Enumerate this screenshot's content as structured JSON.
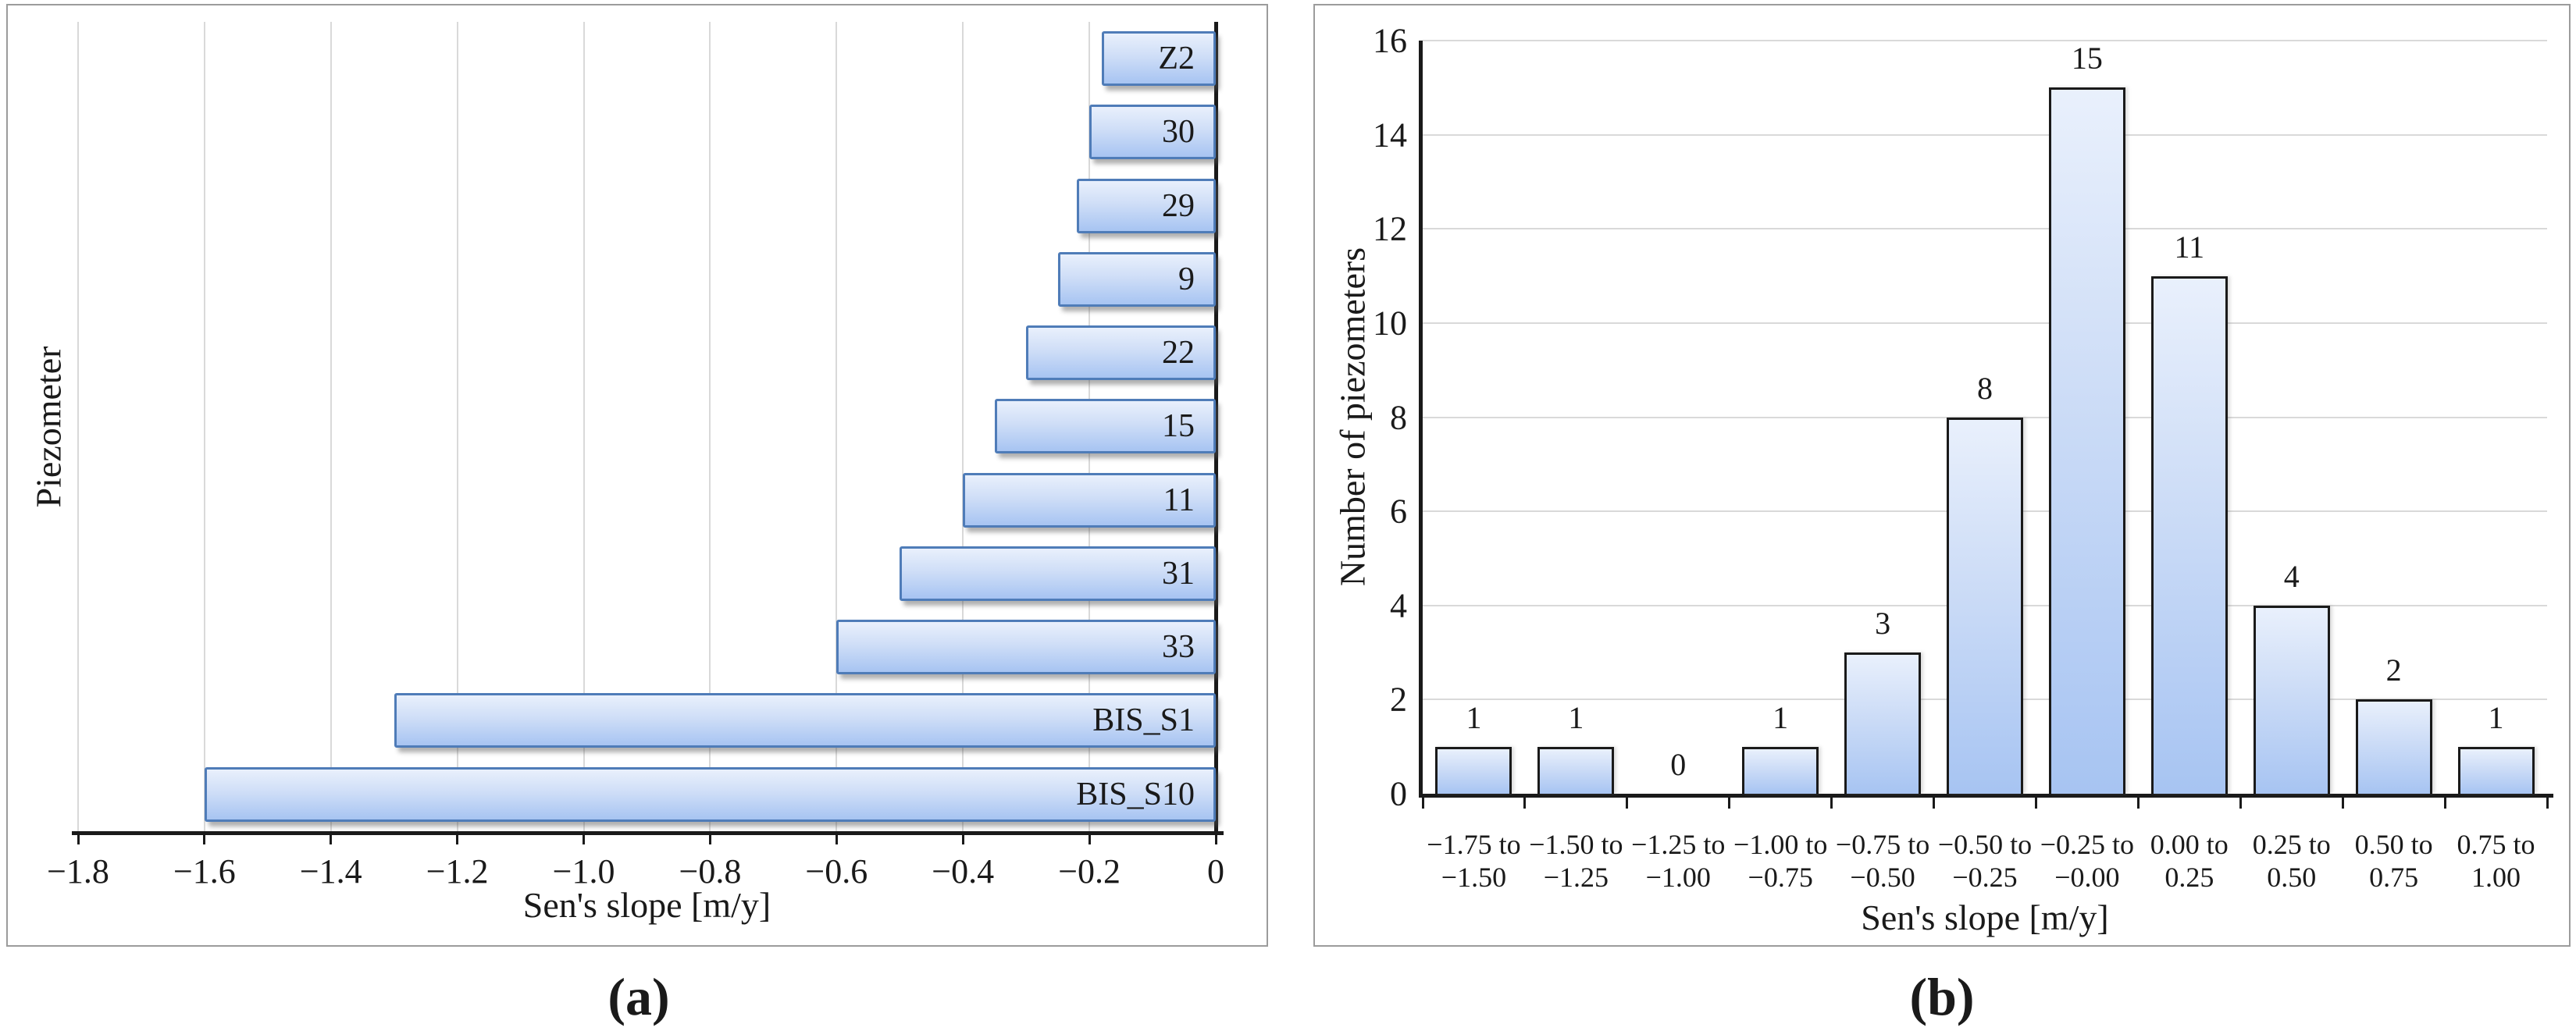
{
  "figure": {
    "caption_a": "(a)",
    "caption_b": "(b)"
  },
  "colors": {
    "bar_fill_top": "#e9f0fc",
    "bar_fill_mid": "#cfdef7",
    "bar_fill_bottom": "#a7c4f2",
    "bar_border_panel_a": "#4f7cb8",
    "bar_border_panel_b": "#1a1a1a",
    "gridline": "#d9d9d9",
    "axis": "#1a1a1a",
    "panel_border": "#9c9c9c",
    "text": "#1a1a1a"
  },
  "chart_data": [
    {
      "id": "a",
      "type": "bar",
      "orientation": "horizontal",
      "xlabel": "Sen's slope [m/y]",
      "ylabel": "Piezometer",
      "xlim": [
        -1.8,
        0
      ],
      "grid": "vertical",
      "legend": "none",
      "xticks": [
        {
          "value": -1.8,
          "label": "−1.8"
        },
        {
          "value": -1.6,
          "label": "−1.6"
        },
        {
          "value": -1.4,
          "label": "−1.4"
        },
        {
          "value": -1.2,
          "label": "−1.2"
        },
        {
          "value": -1.0,
          "label": "−1.0"
        },
        {
          "value": -0.8,
          "label": "−0.8"
        },
        {
          "value": -0.6,
          "label": "−0.6"
        },
        {
          "value": -0.4,
          "label": "−0.4"
        },
        {
          "value": -0.2,
          "label": "−0.2"
        },
        {
          "value": 0,
          "label": "0"
        }
      ],
      "bars": [
        {
          "label": "Z2",
          "value": -0.18
        },
        {
          "label": "30",
          "value": -0.2
        },
        {
          "label": "29",
          "value": -0.22
        },
        {
          "label": "9",
          "value": -0.25
        },
        {
          "label": "22",
          "value": -0.3
        },
        {
          "label": "15",
          "value": -0.35
        },
        {
          "label": "11",
          "value": -0.4
        },
        {
          "label": "31",
          "value": -0.5
        },
        {
          "label": "33",
          "value": -0.6
        },
        {
          "label": "BIS_S1",
          "value": -1.3
        },
        {
          "label": "BIS_S10",
          "value": -1.6
        }
      ]
    },
    {
      "id": "b",
      "type": "bar",
      "orientation": "vertical",
      "xlabel": "Sen's slope [m/y]",
      "ylabel": "Number of piezometers",
      "ylim": [
        0,
        16
      ],
      "grid": "horizontal",
      "legend": "none",
      "yticks": [
        {
          "value": 0,
          "label": "0"
        },
        {
          "value": 2,
          "label": "2"
        },
        {
          "value": 4,
          "label": "4"
        },
        {
          "value": 6,
          "label": "6"
        },
        {
          "value": 8,
          "label": "8"
        },
        {
          "value": 10,
          "label": "10"
        },
        {
          "value": 12,
          "label": "12"
        },
        {
          "value": 14,
          "label": "14"
        },
        {
          "value": 16,
          "label": "16"
        }
      ],
      "bars": [
        {
          "range_line1": "−1.75 to",
          "range_line2": "−1.50",
          "count": 1
        },
        {
          "range_line1": "−1.50 to",
          "range_line2": "−1.25",
          "count": 1
        },
        {
          "range_line1": "−1.25 to",
          "range_line2": "−1.00",
          "count": 0
        },
        {
          "range_line1": "−1.00 to",
          "range_line2": "−0.75",
          "count": 1
        },
        {
          "range_line1": "−0.75 to",
          "range_line2": "−0.50",
          "count": 3
        },
        {
          "range_line1": "−0.50 to",
          "range_line2": "−0.25",
          "count": 8
        },
        {
          "range_line1": "−0.25 to",
          "range_line2": "−0.00",
          "count": 15
        },
        {
          "range_line1": "0.00 to",
          "range_line2": "0.25",
          "count": 11
        },
        {
          "range_line1": "0.25 to",
          "range_line2": "0.50",
          "count": 4
        },
        {
          "range_line1": "0.50 to",
          "range_line2": "0.75",
          "count": 2
        },
        {
          "range_line1": "0.75 to",
          "range_line2": "1.00",
          "count": 1
        }
      ]
    }
  ]
}
